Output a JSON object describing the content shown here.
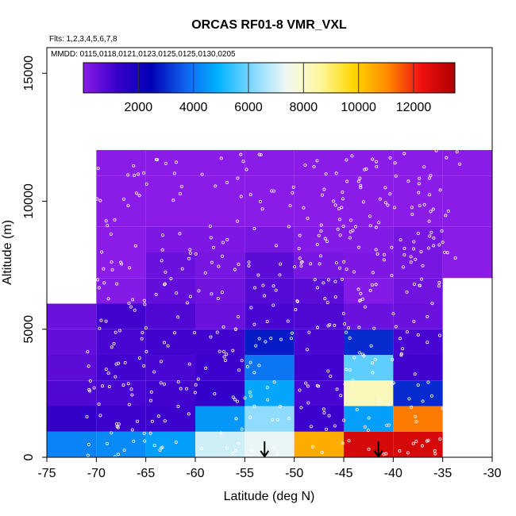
{
  "chart_data": {
    "type": "heatmap",
    "title": "ORCAS RF01-8 VMR_VXL",
    "annotation_flights": "Flts: 1,2,3,4,5,6,7,8",
    "annotation_dates": "MMDD: 0115,0118,0121,0123,0125,0125,0130,0205",
    "xlabel": "Latitude (deg N)",
    "ylabel": "Altitude (m)",
    "xlim": [
      -75,
      -30
    ],
    "ylim": [
      0,
      16000
    ],
    "x_ticks": [
      -75,
      -70,
      -65,
      -60,
      -55,
      -50,
      -45,
      -40,
      -35,
      -30
    ],
    "y_ticks": [
      0,
      5000,
      10000,
      15000
    ],
    "colorbar": {
      "range": [
        0,
        13500
      ],
      "ticks": [
        2000,
        4000,
        6000,
        8000,
        10000,
        12000
      ],
      "colors": [
        "#8b1ce8",
        "#3a00cc",
        "#0000b5",
        "#1060ee",
        "#00b4ff",
        "#80d8ff",
        "#f0f8f4",
        "#fff7a0",
        "#ffd700",
        "#ff8a00",
        "#f01010",
        "#b00000"
      ]
    },
    "cells": [
      {
        "lat": -75,
        "alt": 0,
        "value": 4200
      },
      {
        "lat": -75,
        "alt": 1000,
        "value": 1400
      },
      {
        "lat": -75,
        "alt": 2000,
        "value": 900
      },
      {
        "lat": -75,
        "alt": 3000,
        "value": 700
      },
      {
        "lat": -75,
        "alt": 4000,
        "value": 600
      },
      {
        "lat": -75,
        "alt": 5000,
        "value": 500
      },
      {
        "lat": -70,
        "alt": 0,
        "value": 4300
      },
      {
        "lat": -70,
        "alt": 1000,
        "value": 1200
      },
      {
        "lat": -70,
        "alt": 2000,
        "value": 1000
      },
      {
        "lat": -70,
        "alt": 3000,
        "value": 1100
      },
      {
        "lat": -70,
        "alt": 4000,
        "value": 1000
      },
      {
        "lat": -70,
        "alt": 5000,
        "value": 1100
      },
      {
        "lat": -70,
        "alt": 6000,
        "value": 100
      },
      {
        "lat": -70,
        "alt": 7000,
        "value": 0
      },
      {
        "lat": -70,
        "alt": 8000,
        "value": 0
      },
      {
        "lat": -70,
        "alt": 9000,
        "value": 0
      },
      {
        "lat": -70,
        "alt": 10000,
        "value": 0
      },
      {
        "lat": -70,
        "alt": 11000,
        "value": 0
      },
      {
        "lat": -65,
        "alt": 0,
        "value": 4600
      },
      {
        "lat": -65,
        "alt": 1000,
        "value": 1200
      },
      {
        "lat": -65,
        "alt": 2000,
        "value": 1100
      },
      {
        "lat": -65,
        "alt": 3000,
        "value": 1000
      },
      {
        "lat": -65,
        "alt": 4000,
        "value": 1100
      },
      {
        "lat": -65,
        "alt": 5000,
        "value": 900
      },
      {
        "lat": -65,
        "alt": 6000,
        "value": 600
      },
      {
        "lat": -65,
        "alt": 7000,
        "value": 500
      },
      {
        "lat": -65,
        "alt": 8000,
        "value": 200
      },
      {
        "lat": -65,
        "alt": 9000,
        "value": 0
      },
      {
        "lat": -65,
        "alt": 10000,
        "value": 0
      },
      {
        "lat": -65,
        "alt": 11000,
        "value": 0
      },
      {
        "lat": -60,
        "alt": 0,
        "value": 7000
      },
      {
        "lat": -60,
        "alt": 1000,
        "value": 4500
      },
      {
        "lat": -60,
        "alt": 2000,
        "value": 1400
      },
      {
        "lat": -60,
        "alt": 3000,
        "value": 1200
      },
      {
        "lat": -60,
        "alt": 4000,
        "value": 1100
      },
      {
        "lat": -60,
        "alt": 5000,
        "value": 500
      },
      {
        "lat": -60,
        "alt": 6000,
        "value": 400
      },
      {
        "lat": -60,
        "alt": 7000,
        "value": 300
      },
      {
        "lat": -60,
        "alt": 8000,
        "value": 200
      },
      {
        "lat": -60,
        "alt": 9000,
        "value": 0
      },
      {
        "lat": -60,
        "alt": 10000,
        "value": 0
      },
      {
        "lat": -60,
        "alt": 11000,
        "value": 0
      },
      {
        "lat": -55,
        "alt": 0,
        "value": 7300
      },
      {
        "lat": -55,
        "alt": 1000,
        "value": 6300
      },
      {
        "lat": -55,
        "alt": 2000,
        "value": 4700
      },
      {
        "lat": -55,
        "alt": 3000,
        "value": 4000
      },
      {
        "lat": -55,
        "alt": 4000,
        "value": 2800
      },
      {
        "lat": -55,
        "alt": 5000,
        "value": 1000
      },
      {
        "lat": -55,
        "alt": 6000,
        "value": 800
      },
      {
        "lat": -55,
        "alt": 7000,
        "value": 700
      },
      {
        "lat": -55,
        "alt": 8000,
        "value": 300
      },
      {
        "lat": -55,
        "alt": 9000,
        "value": 0
      },
      {
        "lat": -55,
        "alt": 10000,
        "value": 0
      },
      {
        "lat": -55,
        "alt": 11000,
        "value": 0
      },
      {
        "lat": -50,
        "alt": 0,
        "value": 10500
      },
      {
        "lat": -50,
        "alt": 1000,
        "value": 1200
      },
      {
        "lat": -50,
        "alt": 2000,
        "value": 1000
      },
      {
        "lat": -50,
        "alt": 3000,
        "value": 1100
      },
      {
        "lat": -50,
        "alt": 4000,
        "value": 1000
      },
      {
        "lat": -50,
        "alt": 5000,
        "value": 900
      },
      {
        "lat": -50,
        "alt": 6000,
        "value": 700
      },
      {
        "lat": -50,
        "alt": 7000,
        "value": 300
      },
      {
        "lat": -50,
        "alt": 8000,
        "value": 100
      },
      {
        "lat": -50,
        "alt": 9000,
        "value": 0
      },
      {
        "lat": -50,
        "alt": 10000,
        "value": 0
      },
      {
        "lat": -50,
        "alt": 11000,
        "value": 0
      },
      {
        "lat": -45,
        "alt": 0,
        "value": 12800
      },
      {
        "lat": -45,
        "alt": 1000,
        "value": 4600
      },
      {
        "lat": -45,
        "alt": 2000,
        "value": 8200
      },
      {
        "lat": -45,
        "alt": 3000,
        "value": 5800
      },
      {
        "lat": -45,
        "alt": 4000,
        "value": 3000
      },
      {
        "lat": -45,
        "alt": 5000,
        "value": 500
      },
      {
        "lat": -45,
        "alt": 6000,
        "value": 100
      },
      {
        "lat": -45,
        "alt": 7000,
        "value": 200
      },
      {
        "lat": -45,
        "alt": 8000,
        "value": 100
      },
      {
        "lat": -45,
        "alt": 9000,
        "value": 0
      },
      {
        "lat": -45,
        "alt": 10000,
        "value": 0
      },
      {
        "lat": -45,
        "alt": 11000,
        "value": 0
      },
      {
        "lat": -40,
        "alt": 0,
        "value": 12800
      },
      {
        "lat": -40,
        "alt": 1000,
        "value": 11200
      },
      {
        "lat": -40,
        "alt": 2000,
        "value": 3000
      },
      {
        "lat": -40,
        "alt": 3000,
        "value": 1100
      },
      {
        "lat": -40,
        "alt": 4000,
        "value": 1000
      },
      {
        "lat": -40,
        "alt": 5000,
        "value": 500
      },
      {
        "lat": -40,
        "alt": 6000,
        "value": 400
      },
      {
        "lat": -40,
        "alt": 7000,
        "value": 300
      },
      {
        "lat": -40,
        "alt": 8000,
        "value": 300
      },
      {
        "lat": -40,
        "alt": 9000,
        "value": 0
      },
      {
        "lat": -40,
        "alt": 10000,
        "value": 0
      },
      {
        "lat": -40,
        "alt": 11000,
        "value": 0
      },
      {
        "lat": -35,
        "alt": 7000,
        "value": 0
      },
      {
        "lat": -35,
        "alt": 8000,
        "value": 0
      },
      {
        "lat": -35,
        "alt": 9000,
        "value": 0
      },
      {
        "lat": -35,
        "alt": 10000,
        "value": 0
      },
      {
        "lat": -35,
        "alt": 11000,
        "value": 0
      }
    ],
    "cell_size": {
      "lat": 5,
      "alt": 1000
    },
    "markers": [
      {
        "type": "arrow-down",
        "lat": -53
      },
      {
        "type": "arrow-down",
        "lat": -41.5
      }
    ]
  }
}
